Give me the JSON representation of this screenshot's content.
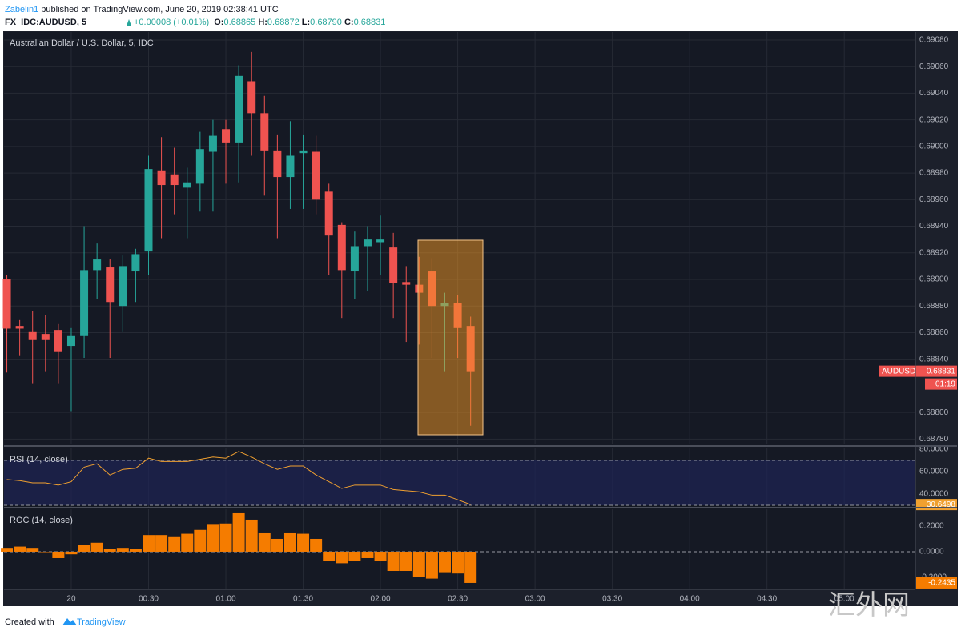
{
  "header": {
    "author": "Zabelin1",
    "published": "published on TradingView.com, June 20, 2019 02:38:41 UTC",
    "symbol": "FX_IDC:AUDUSD, 5",
    "change": "+0.00008 (+0.01%)",
    "ohlc": [
      {
        "label": "O:",
        "value": "0.68865"
      },
      {
        "label": "H:",
        "value": "0.68872"
      },
      {
        "label": "L:",
        "value": "0.68790"
      },
      {
        "label": "C:",
        "value": "0.68831"
      }
    ],
    "countdown": "01:19"
  },
  "footer": {
    "created": "Created with",
    "brand": "TradingView",
    "watermark": "汇外网"
  },
  "chart_data": [
    {
      "type": "candlestick",
      "title": "Australian Dollar / U.S. Dollar, 5, IDC",
      "x": [
        -25,
        -20,
        -15,
        -10,
        -5,
        0,
        5,
        10,
        15,
        20,
        25,
        30,
        35,
        40,
        45,
        50,
        55,
        60,
        65,
        70,
        75,
        80,
        85,
        90,
        95,
        100,
        105,
        110,
        115,
        120,
        125,
        130,
        135,
        140,
        145,
        150,
        155
      ],
      "series": [
        {
          "name": "AUDUSD",
          "open": [
            0.689,
            0.68865,
            0.68861,
            0.68859,
            0.68862,
            0.6885,
            0.68858,
            0.68907,
            0.68909,
            0.6888,
            0.68906,
            0.68921,
            0.68982,
            0.68979,
            0.68969,
            0.68972,
            0.68996,
            0.69013,
            0.69003,
            0.69049,
            0.69025,
            0.68997,
            0.68977,
            0.68995,
            0.68996,
            0.68966,
            0.68941,
            0.68906,
            0.68925,
            0.68928,
            0.68924,
            0.68898,
            0.68896,
            0.68906,
            0.6888,
            0.68882,
            0.68865
          ],
          "high": [
            0.68903,
            0.6887,
            0.68876,
            0.68873,
            0.68867,
            0.68864,
            0.6894,
            0.68927,
            0.68915,
            0.68918,
            0.68923,
            0.68993,
            0.69007,
            0.68999,
            0.68984,
            0.69011,
            0.6902,
            0.6902,
            0.69061,
            0.69071,
            0.69038,
            0.69009,
            0.69019,
            0.69009,
            0.69008,
            0.68972,
            0.68943,
            0.68936,
            0.6894,
            0.68948,
            0.68935,
            0.6891,
            0.68917,
            0.68916,
            0.6889,
            0.68888,
            0.68872
          ],
          "low": [
            0.6883,
            0.68843,
            0.68822,
            0.68831,
            0.68822,
            0.68801,
            0.68841,
            0.68885,
            0.68841,
            0.68861,
            0.68883,
            0.68903,
            0.68931,
            0.68949,
            0.68931,
            0.68951,
            0.68951,
            0.68972,
            0.68973,
            0.68993,
            0.68963,
            0.68931,
            0.68953,
            0.68953,
            0.68949,
            0.68903,
            0.68871,
            0.68885,
            0.68891,
            0.68903,
            0.68871,
            0.68853,
            0.68851,
            0.68841,
            0.68831,
            0.68841,
            0.6879
          ],
          "close": [
            0.68863,
            0.68863,
            0.68855,
            0.68855,
            0.68846,
            0.68858,
            0.68907,
            0.68915,
            0.68883,
            0.6891,
            0.68919,
            0.68983,
            0.68971,
            0.68971,
            0.68973,
            0.68998,
            0.69008,
            0.69003,
            0.69053,
            0.69025,
            0.68997,
            0.68977,
            0.68993,
            0.68997,
            0.6896,
            0.68933,
            0.68907,
            0.68925,
            0.6893,
            0.6893,
            0.68897,
            0.68896,
            0.6889,
            0.6888,
            0.68882,
            0.68864,
            0.68831
          ]
        }
      ],
      "up_color": "#26a69a",
      "down_color": "#ef5350",
      "xlim": [
        -26.1,
        327.6
      ],
      "xticks": [
        {
          "value": 0,
          "label": "20"
        },
        {
          "value": 30,
          "label": "00:30"
        },
        {
          "value": 60,
          "label": "01:00"
        },
        {
          "value": 90,
          "label": "01:30"
        },
        {
          "value": 120,
          "label": "02:00"
        },
        {
          "value": 150,
          "label": "02:30"
        },
        {
          "value": 180,
          "label": "03:00"
        },
        {
          "value": 210,
          "label": "03:30"
        },
        {
          "value": 240,
          "label": "04:00"
        },
        {
          "value": 270,
          "label": "04:30"
        },
        {
          "value": 300,
          "label": "05:00"
        }
      ],
      "ylim": [
        0.68776,
        0.69086
      ],
      "yticks": [
        {
          "value": 0.6878,
          "label": "0.68780"
        },
        {
          "value": 0.688,
          "label": "0.68800"
        },
        {
          "value": 0.6884,
          "label": "0.68840"
        },
        {
          "value": 0.6886,
          "label": "0.68860"
        },
        {
          "value": 0.6888,
          "label": "0.68880"
        },
        {
          "value": 0.689,
          "label": "0.68900"
        },
        {
          "value": 0.6892,
          "label": "0.68920"
        },
        {
          "value": 0.6894,
          "label": "0.68940"
        },
        {
          "value": 0.6896,
          "label": "0.68960"
        },
        {
          "value": 0.6898,
          "label": "0.68980"
        },
        {
          "value": 0.69,
          "label": "0.69000"
        },
        {
          "value": 0.6902,
          "label": "0.69020"
        },
        {
          "value": 0.6904,
          "label": "0.69040"
        },
        {
          "value": 0.6906,
          "label": "0.69060"
        },
        {
          "value": 0.6908,
          "label": "0.69080"
        }
      ],
      "grid": true
    },
    {
      "type": "line",
      "title": "RSI (14, close)",
      "color": "#f0a030",
      "x": [
        -25,
        -20,
        -15,
        -10,
        -5,
        0,
        5,
        10,
        15,
        20,
        25,
        30,
        35,
        40,
        45,
        50,
        55,
        60,
        65,
        70,
        75,
        80,
        85,
        90,
        95,
        100,
        105,
        110,
        115,
        120,
        125,
        130,
        135,
        140,
        145,
        150,
        155
      ],
      "values": [
        53,
        52,
        50,
        50,
        48,
        51,
        64,
        67,
        57,
        62,
        63,
        72,
        69,
        69,
        69,
        71,
        73,
        72,
        78,
        73,
        67,
        62,
        65,
        65,
        57,
        51,
        45,
        48,
        48,
        48,
        44,
        43,
        42,
        39,
        39,
        35,
        30.6498
      ],
      "band": [
        30,
        70
      ],
      "band_color": "#1e2356",
      "ylim": [
        28.6,
        80.7
      ],
      "yticks": [
        {
          "value": 40,
          "label": "40.0000"
        },
        {
          "value": 60,
          "label": "60.0000"
        },
        {
          "value": 80,
          "label": "80.0000"
        }
      ]
    },
    {
      "type": "bar",
      "title": "ROC (14, close)",
      "color": "#f57c00",
      "x": [
        -25,
        -20,
        -15,
        -10,
        -5,
        0,
        5,
        10,
        15,
        20,
        25,
        30,
        35,
        40,
        45,
        50,
        55,
        60,
        65,
        70,
        75,
        80,
        85,
        90,
        95,
        100,
        105,
        110,
        115,
        120,
        125,
        130,
        135,
        140,
        145,
        150,
        155
      ],
      "values": [
        0.03,
        0.04,
        0.03,
        0,
        -0.05,
        -0.02,
        0.05,
        0.07,
        0.02,
        0.03,
        0.02,
        0.13,
        0.13,
        0.12,
        0.14,
        0.17,
        0.21,
        0.22,
        0.3,
        0.25,
        0.15,
        0.1,
        0.15,
        0.14,
        0.1,
        -0.07,
        -0.09,
        -0.07,
        -0.05,
        -0.07,
        -0.15,
        -0.15,
        -0.2,
        -0.21,
        -0.16,
        -0.17,
        -0.2435
      ],
      "ylim": [
        -0.2875,
        0.331
      ],
      "yticks": [
        {
          "value": -0.2,
          "label": "-0.2000"
        },
        {
          "value": 0,
          "label": "0.0000"
        },
        {
          "value": 0.2,
          "label": "0.2000"
        }
      ]
    }
  ]
}
